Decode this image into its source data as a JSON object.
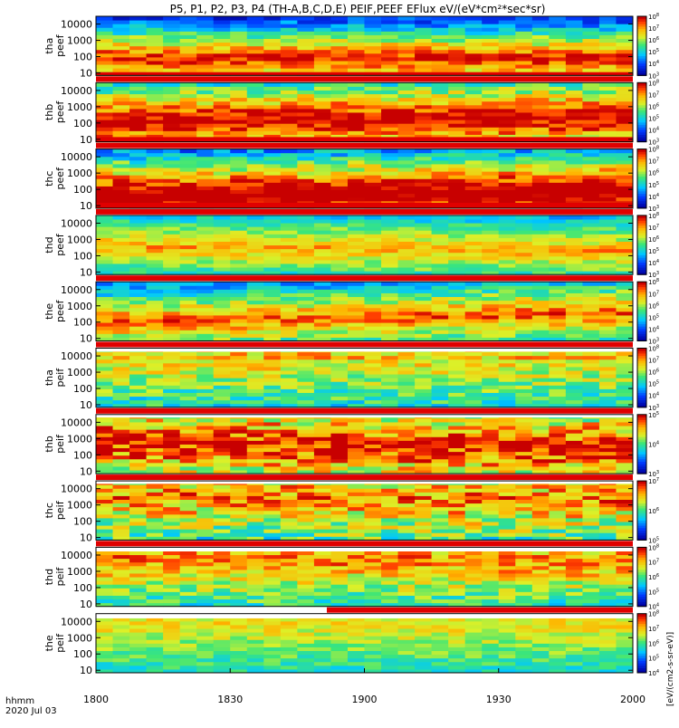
{
  "chart_data": {
    "type": "heatmap",
    "title": "P5, P1, P2, P3, P4 (TH-A,B,C,D,E) PEIF,PEEF EFlux eV/(eV*cm²*sec*sr)",
    "colorbar_label": "[eV/(cm2-s-sr-eV)]",
    "x_axis": {
      "label_line1": "hhmm",
      "label_line2": "2020 Jul 03",
      "ticks": [
        "1800",
        "1830",
        "1900",
        "1930",
        "2000"
      ],
      "range": [
        "18:00",
        "20:00"
      ]
    },
    "y_axis": {
      "scale": "log",
      "range_eV": [
        7,
        30000
      ],
      "ticks": [
        "10",
        "100",
        "1000",
        "10000"
      ]
    },
    "x_columns": 32,
    "panels": [
      {
        "label": [
          "tha",
          "peef"
        ],
        "cbar_min_exp": 3,
        "cbar_max_exp": 8,
        "baseline": 1.9,
        "span": 0,
        "amp": 1.2,
        "noise": 0.25,
        "floor_color": "#e00000",
        "floor_from": 0.0,
        "floor_height": 0.07,
        "bottom_red": 0.055,
        "drift": 0.0,
        "top_white": 0
      },
      {
        "label": [
          "thb",
          "peef"
        ],
        "cbar_min_exp": 3,
        "cbar_max_exp": 8,
        "baseline": 2.1,
        "span": 1,
        "amp": 1.4,
        "noise": 0.3,
        "floor_color": "#e00000",
        "floor_from": 0.0,
        "floor_height": 0.1,
        "bottom_red": 0.08,
        "drift": 0.25,
        "top_white": 0
      },
      {
        "label": [
          "thc",
          "peef"
        ],
        "cbar_min_exp": 3,
        "cbar_max_exp": 8,
        "baseline": 1.6,
        "span": 1,
        "amp": 1.6,
        "noise": 0.3,
        "floor_color": "#e00000",
        "floor_from": 0.0,
        "floor_height": 0.1,
        "bottom_red": 0.09,
        "drift": 0.3,
        "top_white": 0
      },
      {
        "label": [
          "thd",
          "peef"
        ],
        "cbar_min_exp": 3,
        "cbar_max_exp": 8,
        "baseline": 2.6,
        "span": 0,
        "amp": 0.8,
        "noise": 0.2,
        "floor_color": "#e00000",
        "floor_from": 0.0,
        "floor_height": 0.03,
        "bottom_red": 0.0,
        "drift": -0.3,
        "top_white": 0
      },
      {
        "label": [
          "the",
          "peef"
        ],
        "cbar_min_exp": 3,
        "cbar_max_exp": 8,
        "baseline": 2.0,
        "span": 0,
        "amp": 1.0,
        "noise": 0.25,
        "floor_color": "#e00000",
        "floor_from": 0.0,
        "floor_height": 0.03,
        "bottom_red": 0.0,
        "drift": 0.6,
        "top_white": 0
      },
      {
        "label": [
          "tha",
          "peif"
        ],
        "cbar_min_exp": 3,
        "cbar_max_exp": 8,
        "baseline": 4.0,
        "span": 2,
        "amp": 0.7,
        "noise": 0.3,
        "floor_color": "#e00000",
        "floor_from": 0.0,
        "floor_height": 0.05,
        "bottom_red": 0.0,
        "drift": 0.0,
        "top_white": 0.06
      },
      {
        "label": [
          "thb",
          "peif"
        ],
        "cbar_min_exp": 3,
        "cbar_max_exp": 5,
        "baseline": 2.8,
        "span": 2,
        "amp": 1.2,
        "noise": 0.4,
        "floor_color": "#e00000",
        "floor_from": 0.0,
        "floor_height": 0.05,
        "bottom_red": 0.0,
        "drift": -0.4,
        "top_white": 0.05
      },
      {
        "label": [
          "thc",
          "peif"
        ],
        "cbar_min_exp": 5,
        "cbar_max_exp": 7,
        "baseline": 3.6,
        "span": 2,
        "amp": 0.9,
        "noise": 0.4,
        "floor_color": "#e00000",
        "floor_from": 0.0,
        "floor_height": 0.05,
        "bottom_red": 0.0,
        "drift": -0.3,
        "top_white": 0.05
      },
      {
        "label": [
          "thd",
          "peif"
        ],
        "cbar_min_exp": 4,
        "cbar_max_exp": 8,
        "baseline": 3.8,
        "span": 2,
        "amp": 0.9,
        "noise": 0.3,
        "floor_color": "#e00000",
        "floor_from": 0.43,
        "floor_height": 0.05,
        "bottom_red": 0.0,
        "drift": -0.2,
        "top_white": 0.07
      },
      {
        "label": [
          "the",
          "peif"
        ],
        "cbar_min_exp": 4,
        "cbar_max_exp": 8,
        "baseline": 3.9,
        "span": 2,
        "amp": 0.6,
        "noise": 0.2,
        "floor_color": "#ffff00",
        "floor_from": 0.0,
        "floor_height": 0.06,
        "bottom_red": 0.0,
        "drift": 0.0,
        "top_white": 0.08
      }
    ]
  }
}
